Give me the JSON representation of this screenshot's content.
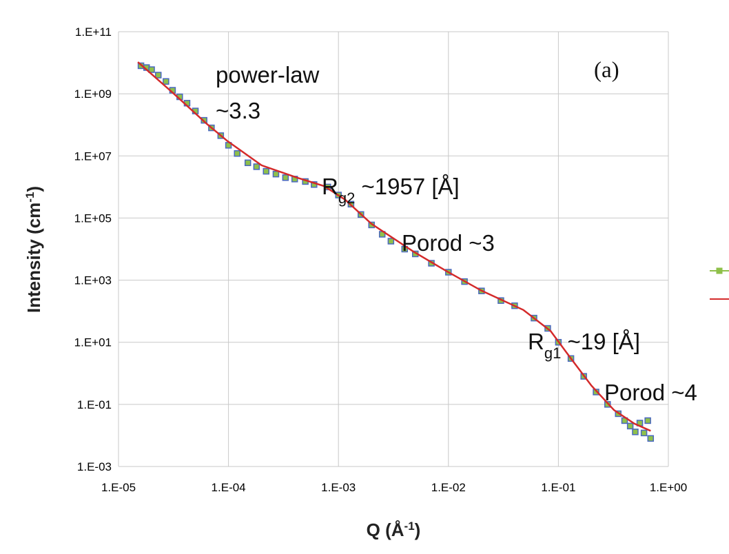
{
  "chart_data": {
    "type": "scatter-line",
    "xscale": "log",
    "yscale": "log",
    "grid": true,
    "x_label": {
      "text": "Q (Å",
      "sup": "-1",
      "after": ")"
    },
    "y_label": {
      "text": "Intensity (cm",
      "sup": "-1",
      "after": ")"
    },
    "xlim": [
      1e-05,
      1
    ],
    "ylim": [
      0.001,
      100000000000.0
    ],
    "xticks": [
      {
        "value": 1e-05,
        "label": "1.E-05"
      },
      {
        "value": 0.0001,
        "label": "1.E-04"
      },
      {
        "value": 0.001,
        "label": "1.E-03"
      },
      {
        "value": 0.01,
        "label": "1.E-02"
      },
      {
        "value": 0.1,
        "label": "1.E-01"
      },
      {
        "value": 1,
        "label": "1.E+00"
      }
    ],
    "yticks": [
      {
        "value": 0.001,
        "label": "1.E-03"
      },
      {
        "value": 0.1,
        "label": "1.E-01"
      },
      {
        "value": 10,
        "label": "1.E+01"
      },
      {
        "value": 1000,
        "label": "1.E+03"
      },
      {
        "value": 100000.0,
        "label": "1.E+05"
      },
      {
        "value": 10000000.0,
        "label": "1.E+07"
      },
      {
        "value": 1000000000.0,
        "label": "1.E+09"
      },
      {
        "value": 100000000000.0,
        "label": "1.E+11"
      }
    ],
    "annotations": [
      {
        "text": "(a)"
      },
      {
        "text": "power-law"
      },
      {
        "text": "~3.3"
      },
      {
        "text": "R",
        "sub": "g2",
        "after": " ~1957 [Å]"
      },
      {
        "text": "Porod ~3"
      },
      {
        "text": "R",
        "sub": "g1",
        "after": " ~19 [Å]"
      },
      {
        "text": "Porod ~4"
      }
    ],
    "series": [
      {
        "kind": "markers",
        "color": "#8fc04a",
        "edge": "#4a68c0",
        "x": [
          1.6e-05,
          1.8e-05,
          2e-05,
          2.3e-05,
          2.7e-05,
          3.1e-05,
          3.6e-05,
          4.2e-05,
          5e-05,
          6e-05,
          7e-05,
          8.5e-05,
          0.0001,
          0.00012,
          0.00015,
          0.00018,
          0.00022,
          0.00027,
          0.00033,
          0.0004,
          0.0005,
          0.0006,
          0.0008,
          0.001,
          0.0013,
          0.0016,
          0.002,
          0.0025,
          0.003,
          0.004,
          0.005,
          0.007,
          0.01,
          0.014,
          0.02,
          0.03,
          0.04,
          0.06,
          0.08,
          0.1,
          0.13,
          0.17,
          0.22,
          0.28,
          0.35,
          0.4,
          0.45,
          0.5,
          0.55,
          0.6,
          0.65,
          0.69
        ],
        "values": [
          8000000000.0,
          7000000000.0,
          6000000000.0,
          4000000000.0,
          2500000000.0,
          1300000000.0,
          800000000.0,
          500000000.0,
          280000000.0,
          140000000.0,
          80000000.0,
          45000000.0,
          22000000.0,
          12000000.0,
          6000000.0,
          4500000.0,
          3200000.0,
          2600000.0,
          2000000.0,
          1800000.0,
          1500000.0,
          1200000.0,
          1000000.0,
          550000.0,
          280000.0,
          130000.0,
          60000.0,
          30000.0,
          18000.0,
          10000.0,
          7000.0,
          3500.0,
          1800.0,
          900.0,
          450.0,
          220.0,
          150.0,
          60.0,
          28.0,
          10.0,
          3,
          0.8,
          0.25,
          0.1,
          0.05,
          0.03,
          0.02,
          0.013,
          0.025,
          0.012,
          0.03,
          0.008
        ]
      },
      {
        "kind": "line",
        "color": "#d42a2a",
        "x": [
          1.5e-05,
          3.1e-05,
          6.3e-05,
          9.8e-05,
          0.0002,
          0.00042,
          0.00074,
          0.00115,
          0.002,
          0.0048,
          0.01,
          0.02,
          0.048,
          0.085,
          0.13,
          0.2,
          0.32,
          0.49,
          0.69
        ],
        "values": [
          10500000000.0,
          1100000000.0,
          110000000.0,
          30000000.0,
          5000000.0,
          2000000.0,
          1070000.0,
          390000.0,
          65000.0,
          8300.0,
          1800.0,
          460.0,
          110.0,
          23.0,
          3,
          0.4,
          0.066,
          0.024,
          0.014
        ]
      }
    ]
  }
}
